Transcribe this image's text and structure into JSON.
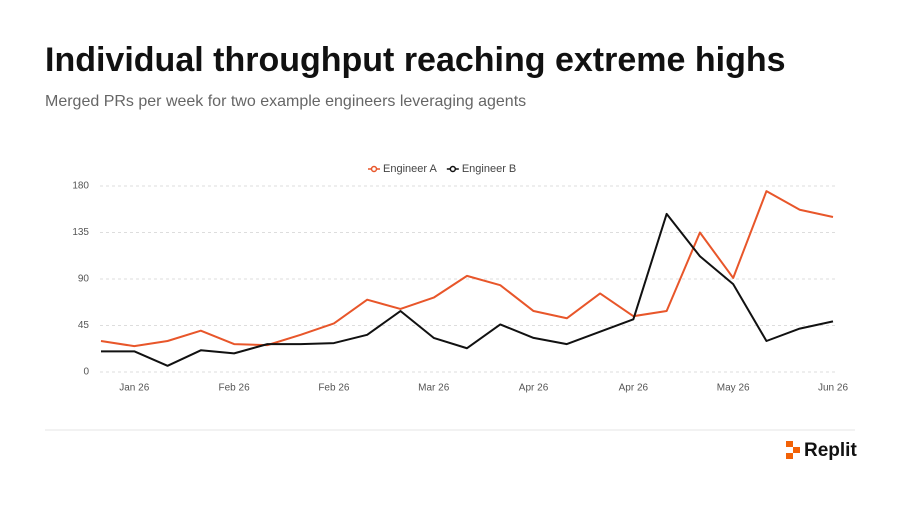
{
  "chart_data": {
    "type": "line",
    "title": "Individual throughput reaching extreme highs",
    "subtitle": "Merged PRs per week for two example engineers leveraging agents",
    "categories": [
      null,
      "Jan 26",
      null,
      null,
      "Feb 26",
      null,
      null,
      "Feb 26",
      null,
      null,
      "Mar 26",
      null,
      null,
      "Apr 26",
      null,
      null,
      "Apr 26",
      null,
      null,
      "May 26",
      null,
      null,
      "Jun 26"
    ],
    "series": [
      {
        "name": "Engineer A",
        "color": "#e8562a",
        "values": [
          30,
          25,
          30,
          40,
          27,
          26,
          36,
          47,
          70,
          61,
          72,
          93,
          84,
          59,
          52,
          76,
          54,
          59,
          135,
          91,
          175,
          157,
          150
        ]
      },
      {
        "name": "Engineer B",
        "color": "#111111",
        "values": [
          20,
          20,
          6,
          21,
          18,
          27,
          27,
          28,
          36,
          59,
          33,
          23,
          46,
          33,
          27,
          39,
          51,
          153,
          112,
          85,
          30,
          42,
          49
        ]
      }
    ],
    "ylim": [
      0,
      180
    ],
    "yticks": [
      0,
      45,
      90,
      135,
      180
    ],
    "grid": true,
    "legend": "top"
  },
  "brand": "Replit"
}
